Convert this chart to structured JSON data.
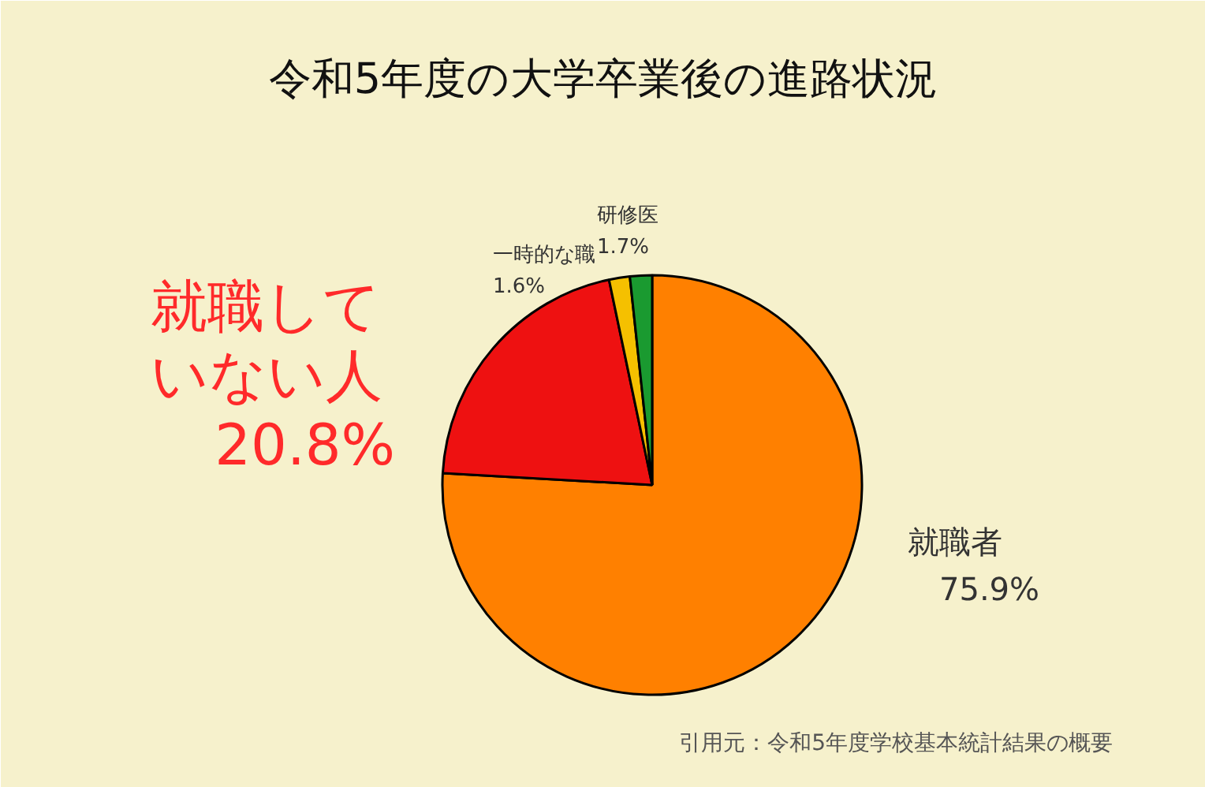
{
  "chart_data": {
    "type": "pie",
    "title": "令和5年度の大学卒業後の進路状況",
    "categories": [
      "就職者",
      "就職していない人",
      "一時的な職",
      "研修医"
    ],
    "values": [
      75.9,
      20.8,
      1.6,
      1.7
    ],
    "colors": [
      "#ff8000",
      "#ee1111",
      "#f5c000",
      "#1a9a30"
    ],
    "value_labels": [
      "75.9%",
      "20.8%",
      "1.6%",
      "1.7%"
    ],
    "annotations": [
      "引用元：令和5年度学校基本統計結果の概要"
    ]
  }
}
